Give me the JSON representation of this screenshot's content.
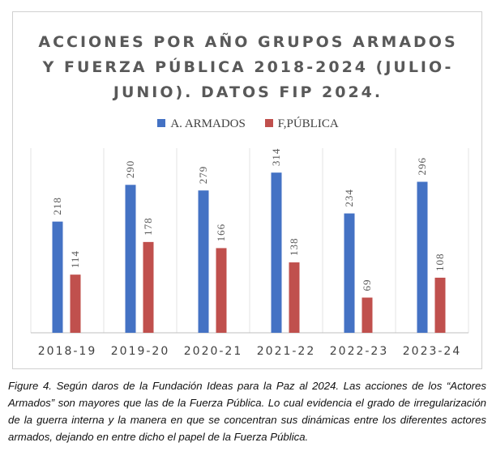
{
  "chart_data": {
    "type": "bar",
    "title": "ACCIONES POR AÑO GRUPOS ARMADOS Y FUERZA PÚBLICA 2018-2024 (JULIO-JUNIO). DATOS FIP 2024.",
    "title_lines": [
      "ACCIONES POR AÑO GRUPOS ARMADOS",
      "Y FUERZA PÚBLICA 2018-2024 (JULIO-",
      "JUNIO). DATOS FIP 2024."
    ],
    "categories": [
      "2018-19",
      "2019-20",
      "2020-21",
      "2021-22",
      "2022-23",
      "2023-24"
    ],
    "series": [
      {
        "name": "A. ARMADOS",
        "values": [
          218,
          290,
          279,
          314,
          234,
          296
        ],
        "color": "#4472c4"
      },
      {
        "name": "F,PÚBLICA",
        "values": [
          114,
          178,
          166,
          138,
          69,
          108
        ],
        "color": "#c0504d"
      }
    ],
    "xlabel": "",
    "ylabel": "",
    "ylim": [
      0,
      340
    ],
    "grid": false,
    "legend_position": "top",
    "data_labels": true
  },
  "caption": "Figure 4. Según daros de la Fundación Ideas para la Paz al 2024. Las acciones de los “Actores Armados” son mayores que las de la Fuerza Pública. Lo cual evidencia el grado de irregularización de la guerra interna y la manera en que se concentran sus dinámicas entre los diferentes actores armados, dejando en entre dicho el papel de la Fuerza Pública."
}
